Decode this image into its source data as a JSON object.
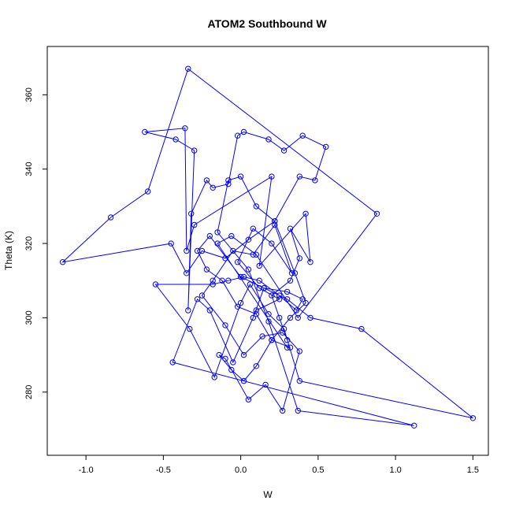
{
  "chart_data": {
    "type": "line",
    "title": "ATOM2 Southbound W",
    "xlabel": "W",
    "ylabel": "Theta (K)",
    "xlim": [
      -1.25,
      1.6
    ],
    "ylim": [
      263,
      373
    ],
    "xticks": [
      -1.0,
      -0.5,
      0.0,
      0.5,
      1.0,
      1.5
    ],
    "xtick_labels": [
      "-1.0",
      "-0.5",
      "0.0",
      "0.5",
      "1.0",
      "1.5"
    ],
    "yticks": [
      280,
      300,
      320,
      340,
      360
    ],
    "ytick_labels": [
      "280",
      "300",
      "320",
      "340",
      "360"
    ],
    "grid": false,
    "markers": "open-circle",
    "series_color": "#0000ff",
    "series": [
      {
        "x": [
          0.3,
          0.25,
          0.2,
          0.32,
          0.38,
          0.32,
          0.45,
          0.42,
          0.12,
          0.2,
          -0.3,
          -0.35,
          -0.36,
          -0.62,
          -0.42,
          -0.3,
          -0.34,
          -0.32,
          -0.22,
          -0.18,
          -0.08,
          -0.02,
          0.02,
          0.18,
          0.28,
          0.4,
          0.55,
          0.48,
          0.38,
          0.22,
          0.05,
          -0.1,
          -0.25,
          -0.35,
          -0.45,
          -1.15,
          -0.84,
          -0.6,
          -0.34,
          0.88,
          0.37,
          0.1,
          -0.06,
          -0.15,
          0.3,
          0.32,
          0.2,
          0.1,
          -0.02,
          -0.12,
          -0.22,
          -0.28,
          -0.2,
          0.0,
          0.15,
          0.3,
          0.4,
          0.36,
          0.25,
          0.12,
          0.02,
          -0.08,
          -0.18,
          -0.55,
          -0.33,
          -0.17,
          0.0,
          0.06,
          0.18,
          0.28,
          0.38,
          1.5,
          0.78,
          0.45,
          0.3,
          0.15,
          0.08,
          -0.05,
          -0.2,
          -0.28,
          -0.44,
          1.12,
          0.37,
          0.18,
          0.05,
          -0.15,
          -0.08,
          0.0,
          0.1,
          0.22,
          0.35,
          0.42,
          0.32,
          0.2,
          0.1,
          0.02,
          -0.06,
          -0.14,
          -0.1,
          0.05,
          0.16,
          0.27,
          0.38,
          0.27,
          0.14,
          0.02,
          -0.1,
          -0.25,
          -0.18,
          -0.05,
          0.08,
          0.22,
          0.33,
          0.2,
          0.08,
          -0.02,
          0.12,
          0.25,
          0.1
        ],
        "y": [
          294,
          300,
          306,
          310,
          316,
          324,
          315,
          328,
          314,
          338,
          325,
          318,
          351,
          350,
          348,
          345,
          302,
          328,
          337,
          335,
          336,
          349,
          350,
          348,
          345,
          349,
          346,
          337,
          338,
          326,
          321,
          316,
          318,
          312,
          320,
          315,
          327,
          334,
          367,
          328,
          300,
          317,
          322,
          320,
          292,
          292,
          294,
          301,
          303,
          310,
          313,
          318,
          322,
          311,
          308,
          307,
          305,
          302,
          306,
          310,
          311,
          310,
          309,
          309,
          297,
          284,
          304,
          309,
          301,
          297,
          283,
          273,
          297,
          300,
          305,
          308,
          300,
          288,
          302,
          305,
          288,
          271,
          275,
          299,
          313,
          323,
          337,
          338,
          330,
          326,
          312,
          304,
          300,
          294,
          287,
          283,
          286,
          290,
          289,
          278,
          282,
          275,
          291,
          296,
          295,
          290,
          298,
          306,
          310,
          318,
          317,
          325,
          312,
          320,
          324,
          315,
          308,
          305,
          302
        ]
      }
    ]
  }
}
